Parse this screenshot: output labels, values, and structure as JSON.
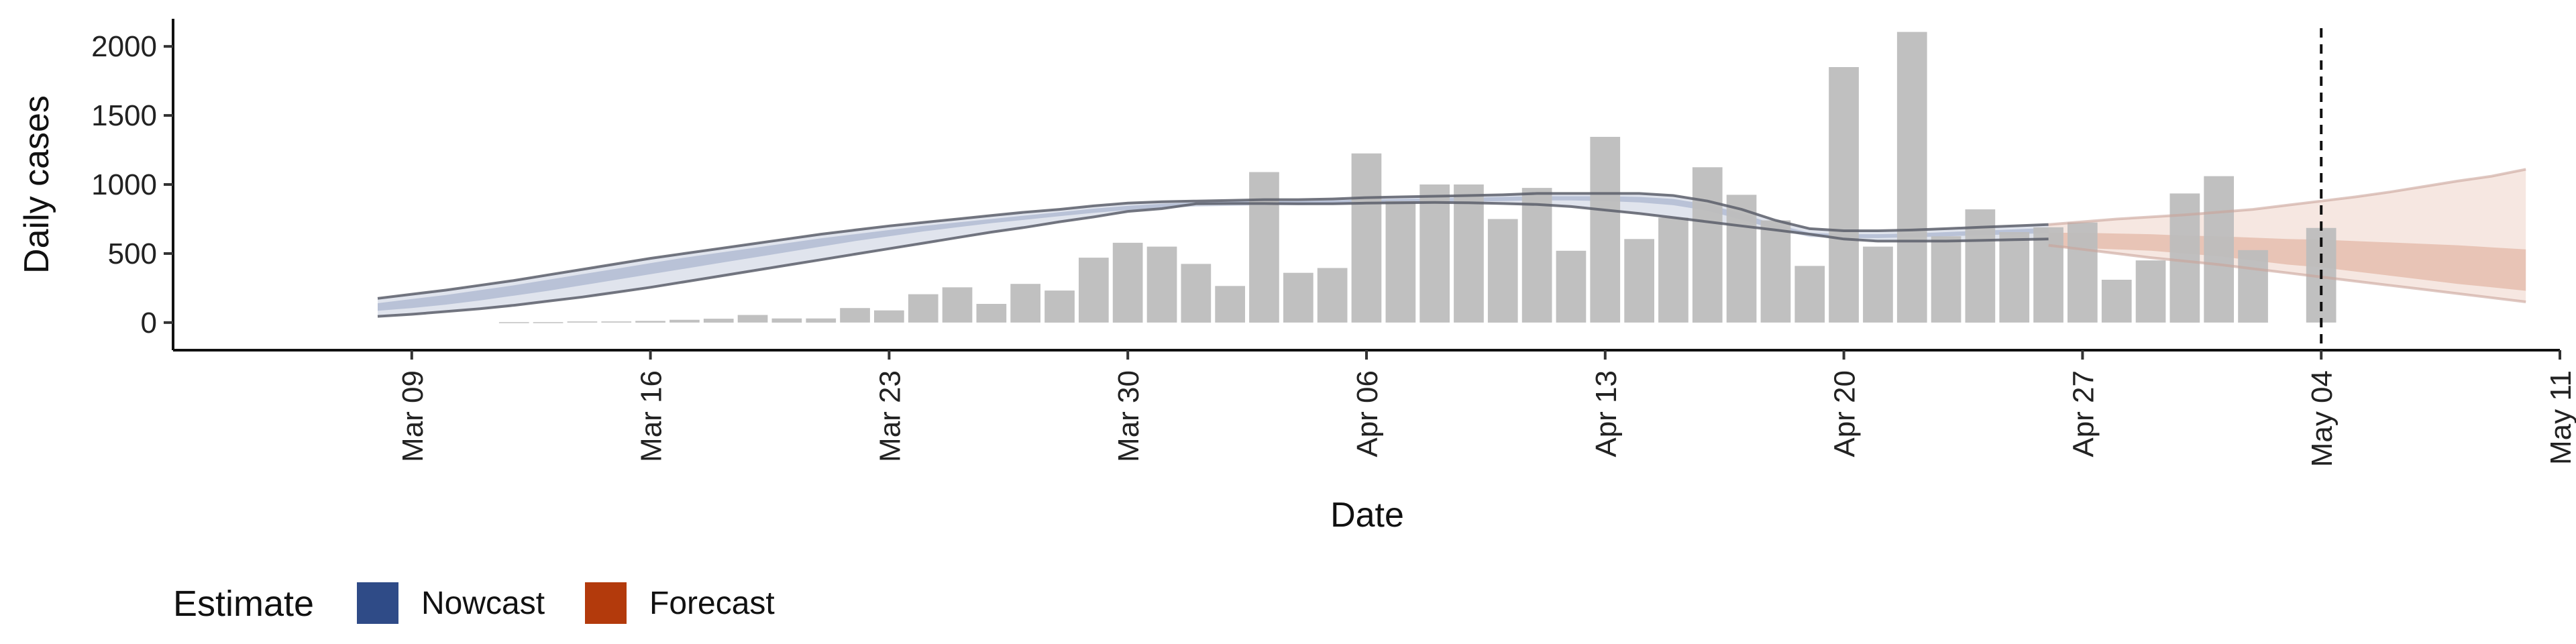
{
  "chart_data": {
    "type": "bar",
    "title": "",
    "xlabel": "Date",
    "ylabel": "Daily cases",
    "ylim": [
      -200,
      2200
    ],
    "xlim": [
      "2020-03-02",
      "2020-05-11"
    ],
    "y_ticks": [
      0,
      500,
      1000,
      1500,
      2000
    ],
    "x_ticks": [
      {
        "date": "2020-03-09",
        "label": "Mar 09"
      },
      {
        "date": "2020-03-16",
        "label": "Mar 16"
      },
      {
        "date": "2020-03-23",
        "label": "Mar 23"
      },
      {
        "date": "2020-03-30",
        "label": "Mar 30"
      },
      {
        "date": "2020-04-06",
        "label": "Apr 06"
      },
      {
        "date": "2020-04-13",
        "label": "Apr 13"
      },
      {
        "date": "2020-04-20",
        "label": "Apr 20"
      },
      {
        "date": "2020-04-27",
        "label": "Apr 27"
      },
      {
        "date": "2020-05-04",
        "label": "May 04"
      },
      {
        "date": "2020-05-11",
        "label": "May 11"
      }
    ],
    "grid": false,
    "legend": {
      "title": "Estimate",
      "position": "bottom-left",
      "entries": [
        {
          "label": "Nowcast",
          "color": "#2f4b87"
        },
        {
          "label": "Forecast",
          "color": "#b33a0c"
        }
      ]
    },
    "reference_line": {
      "date": "2020-05-04",
      "style": "dashed"
    },
    "bars": {
      "color": "#bdbdbd",
      "dates": [
        "2020-03-12",
        "2020-03-13",
        "2020-03-14",
        "2020-03-15",
        "2020-03-16",
        "2020-03-17",
        "2020-03-18",
        "2020-03-19",
        "2020-03-20",
        "2020-03-21",
        "2020-03-22",
        "2020-03-23",
        "2020-03-24",
        "2020-03-25",
        "2020-03-26",
        "2020-03-27",
        "2020-03-28",
        "2020-03-29",
        "2020-03-30",
        "2020-03-31",
        "2020-04-01",
        "2020-04-02",
        "2020-04-03",
        "2020-04-04",
        "2020-04-05",
        "2020-04-06",
        "2020-04-07",
        "2020-04-08",
        "2020-04-09",
        "2020-04-10",
        "2020-04-11",
        "2020-04-12",
        "2020-04-13",
        "2020-04-14",
        "2020-04-15",
        "2020-04-16",
        "2020-04-17",
        "2020-04-18",
        "2020-04-19",
        "2020-04-20",
        "2020-04-21",
        "2020-04-22",
        "2020-04-23",
        "2020-04-24",
        "2020-04-25",
        "2020-04-26",
        "2020-04-27",
        "2020-04-28",
        "2020-04-29",
        "2020-04-30",
        "2020-05-01",
        "2020-05-02",
        "2020-05-04"
      ],
      "values": [
        3,
        3,
        8,
        8,
        12,
        20,
        28,
        55,
        30,
        30,
        105,
        88,
        205,
        255,
        135,
        280,
        232,
        470,
        578,
        550,
        425,
        265,
        1090,
        360,
        395,
        1225,
        880,
        1000,
        1000,
        750,
        975,
        520,
        1345,
        605,
        760,
        1125,
        925,
        740,
        410,
        1850,
        550,
        2105,
        625,
        820,
        655,
        690,
        725,
        310,
        450,
        935,
        1060,
        525,
        685
      ]
    },
    "series": [
      {
        "name": "Nowcast",
        "color": "#2f4b87",
        "x": [
          "2020-03-08",
          "2020-03-09",
          "2020-03-10",
          "2020-03-11",
          "2020-03-12",
          "2020-03-13",
          "2020-03-14",
          "2020-03-15",
          "2020-03-16",
          "2020-03-17",
          "2020-03-18",
          "2020-03-19",
          "2020-03-20",
          "2020-03-21",
          "2020-03-22",
          "2020-03-23",
          "2020-03-24",
          "2020-03-25",
          "2020-03-26",
          "2020-03-27",
          "2020-03-28",
          "2020-03-29",
          "2020-03-30",
          "2020-03-31",
          "2020-04-01",
          "2020-04-02",
          "2020-04-03",
          "2020-04-04",
          "2020-04-05",
          "2020-04-06",
          "2020-04-07",
          "2020-04-08",
          "2020-04-09",
          "2020-04-10",
          "2020-04-11",
          "2020-04-12",
          "2020-04-13",
          "2020-04-14",
          "2020-04-15",
          "2020-04-16",
          "2020-04-17",
          "2020-04-18",
          "2020-04-19",
          "2020-04-20",
          "2020-04-21",
          "2020-04-22",
          "2020-04-23",
          "2020-04-24",
          "2020-04-25",
          "2020-04-26"
        ],
        "upper_90": [
          175,
          205,
          235,
          270,
          305,
          345,
          385,
          425,
          465,
          500,
          535,
          570,
          605,
          640,
          670,
          700,
          725,
          750,
          775,
          800,
          820,
          845,
          865,
          875,
          880,
          885,
          890,
          890,
          895,
          905,
          910,
          915,
          920,
          925,
          935,
          935,
          935,
          935,
          920,
          880,
          820,
          740,
          680,
          665,
          665,
          670,
          680,
          690,
          700,
          710
        ],
        "upper_50": [
          140,
          170,
          200,
          235,
          270,
          310,
          350,
          390,
          430,
          470,
          505,
          540,
          575,
          610,
          640,
          670,
          700,
          725,
          750,
          775,
          800,
          825,
          845,
          860,
          870,
          875,
          880,
          880,
          885,
          890,
          895,
          900,
          905,
          910,
          915,
          915,
          915,
          910,
          895,
          855,
          790,
          710,
          650,
          640,
          640,
          645,
          655,
          665,
          675,
          685
        ],
        "lower_50": [
          85,
          105,
          130,
          160,
          195,
          230,
          270,
          310,
          350,
          390,
          430,
          470,
          510,
          550,
          590,
          625,
          660,
          690,
          720,
          745,
          770,
          795,
          815,
          830,
          840,
          845,
          850,
          850,
          855,
          860,
          865,
          870,
          875,
          880,
          885,
          885,
          880,
          870,
          850,
          810,
          745,
          675,
          620,
          612,
          612,
          618,
          625,
          632,
          640,
          648
        ],
        "lower_90": [
          45,
          60,
          80,
          100,
          125,
          155,
          185,
          220,
          255,
          295,
          335,
          375,
          415,
          455,
          495,
          535,
          575,
          615,
          655,
          690,
          730,
          765,
          805,
          825,
          860,
          862,
          862,
          860,
          860,
          865,
          868,
          870,
          868,
          862,
          855,
          840,
          815,
          790,
          760,
          730,
          700,
          670,
          640,
          605,
          590,
          590,
          590,
          595,
          600,
          605
        ]
      },
      {
        "name": "Forecast",
        "color": "#b33a0c",
        "x": [
          "2020-04-26",
          "2020-04-27",
          "2020-04-28",
          "2020-04-29",
          "2020-04-30",
          "2020-05-01",
          "2020-05-02",
          "2020-05-03",
          "2020-05-04",
          "2020-05-05",
          "2020-05-06",
          "2020-05-07",
          "2020-05-08",
          "2020-05-09",
          "2020-05-10"
        ],
        "upper_90": [
          710,
          730,
          750,
          765,
          780,
          800,
          820,
          850,
          880,
          910,
          945,
          985,
          1025,
          1060,
          1110
        ],
        "upper_50": [
          650,
          650,
          645,
          640,
          630,
          625,
          615,
          605,
          600,
          590,
          580,
          570,
          560,
          545,
          530
        ],
        "lower_50": [
          545,
          540,
          530,
          520,
          500,
          480,
          450,
          420,
          400,
          370,
          340,
          310,
          280,
          255,
          230
        ],
        "lower_90": [
          560,
          530,
          500,
          470,
          445,
          420,
          390,
          360,
          330,
          300,
          270,
          240,
          210,
          180,
          150
        ]
      }
    ]
  }
}
